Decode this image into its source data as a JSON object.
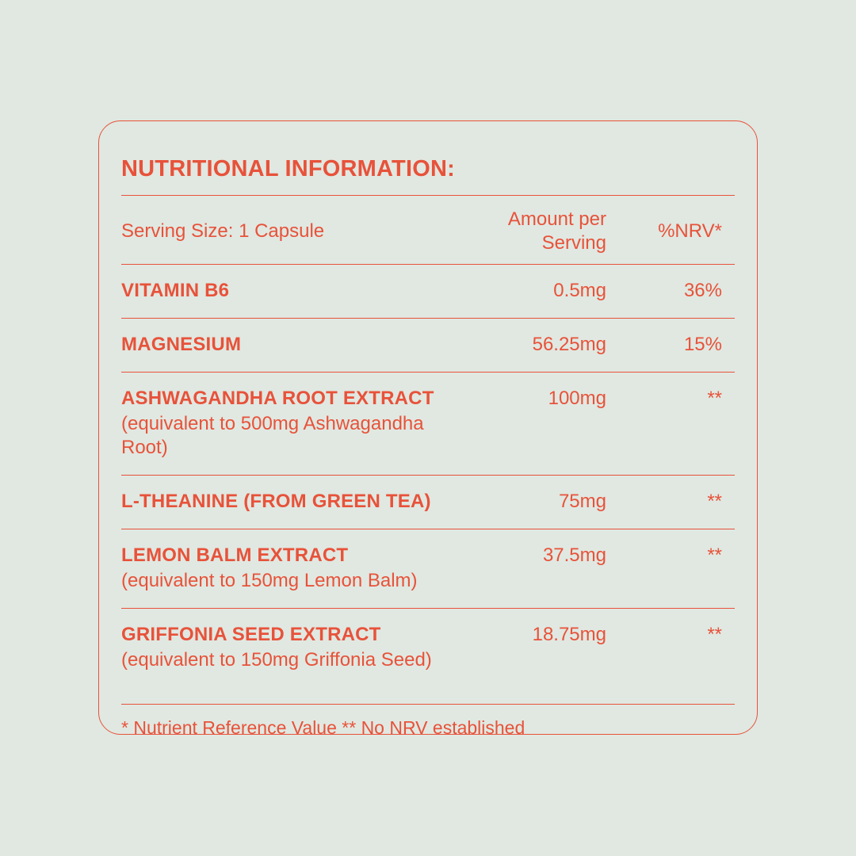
{
  "page": {
    "background_color": "#E0E8E1",
    "accent_color": "#E8523A"
  },
  "panel": {
    "title": "NUTRITIONAL INFORMATION:",
    "header": {
      "serving_size": "Serving Size: 1 Capsule",
      "amount_label": "Amount per Serving",
      "nrv_label": "%NRV*"
    },
    "rows": [
      {
        "name": "VITAMIN B6",
        "amount": "0.5mg",
        "nrv": "36%"
      },
      {
        "name": "MAGNESIUM",
        "amount": "56.25mg",
        "nrv": "15%"
      },
      {
        "name": "ASHWAGANDHA ROOT EXTRACT",
        "note": "(equivalent to 500mg Ashwagandha Root)",
        "amount": "100mg",
        "nrv": "**"
      },
      {
        "name": "L-THEANINE (FROM GREEN TEA)",
        "amount": "75mg",
        "nrv": "**"
      },
      {
        "name": "LEMON BALM EXTRACT",
        "note": "(equivalent to 150mg Lemon Balm)",
        "amount": "37.5mg",
        "nrv": "**"
      },
      {
        "name": "GRIFFONIA SEED EXTRACT",
        "note": "(equivalent to 150mg Griffonia Seed)",
        "amount": "18.75mg",
        "nrv": "**"
      }
    ],
    "footnote": "* Nutrient Reference Value  ** No NRV established"
  }
}
